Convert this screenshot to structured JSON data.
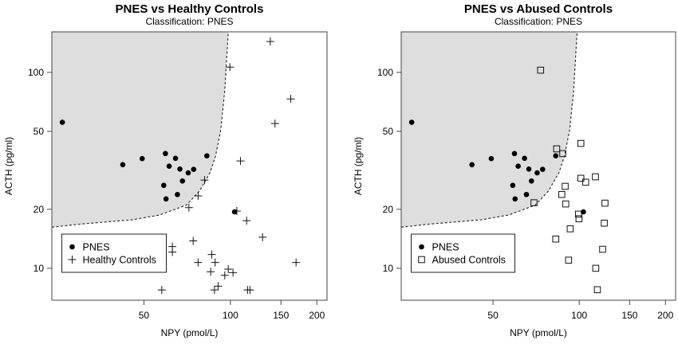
{
  "chart_data": [
    {
      "type": "scatter",
      "title": "PNES vs Healthy Controls",
      "subtitle": "Classification: PNES",
      "xlabel": "NPY (pmol/L)",
      "ylabel": "ACTH (pg/ml)",
      "x_scale": "log",
      "y_scale": "log",
      "xlim": [
        23.9,
        217
      ],
      "ylim": [
        6.87,
        161
      ],
      "xticks": [
        "50",
        "100",
        "150",
        "200"
      ],
      "yticks": [
        "10",
        "20",
        "50",
        "100"
      ],
      "grid": false,
      "legend_position": "bottom-left",
      "region_fill": "#dedede",
      "boundary": [
        [
          23.9,
          16.2
        ],
        [
          29.9,
          16.8
        ],
        [
          45.8,
          17.7
        ],
        [
          56.7,
          18.7
        ],
        [
          70.2,
          21.0
        ],
        [
          78.1,
          24.8
        ],
        [
          85.0,
          30.8
        ],
        [
          88.7,
          37.2
        ],
        [
          92.6,
          50.8
        ],
        [
          95.6,
          81.2
        ],
        [
          98.3,
          161
        ]
      ],
      "series": [
        {
          "name": "PNES",
          "marker": "filled-circle",
          "x": [
            26.0,
            42.2,
            49.3,
            59.4,
            61.2,
            64.4,
            66.7,
            71.3,
            74.5,
            82.8,
            68.1,
            58.6,
            59.7,
            65.4,
            103.4
          ],
          "y": [
            55.6,
            33.8,
            36.3,
            38.5,
            33.2,
            36.4,
            32.1,
            30.7,
            32.0,
            37.5,
            27.9,
            26.5,
            22.6,
            23.8,
            19.4
          ]
        },
        {
          "name": "Healthy Controls",
          "marker": "plus",
          "x": [
            137.7,
            99.6,
            162.2,
            143,
            108.4,
            81.3,
            77.2,
            71.7,
            105.3,
            113.9,
            129.4,
            74.2,
            62.8,
            62.8,
            86.1,
            77.2,
            88.5,
            169.3,
            85.4,
            98.3,
            102.1,
            95.6,
            57.7,
            88.0,
            90.6,
            114.8,
            117
          ],
          "y": [
            143.7,
            106.4,
            73.2,
            54.8,
            35.3,
            28.2,
            23.4,
            20.4,
            19.6,
            17.5,
            14.4,
            13.8,
            12.9,
            12.1,
            11.75,
            10.7,
            10.7,
            10.7,
            9.6,
            9.9,
            9.5,
            9.2,
            7.75,
            7.75,
            8.1,
            7.75,
            7.75
          ]
        }
      ]
    },
    {
      "type": "scatter",
      "title": "PNES vs Abused Controls",
      "subtitle": "Classification: PNES",
      "xlabel": "NPY (pmol/L)",
      "ylabel": "ACTH (pg/ml)",
      "x_scale": "log",
      "y_scale": "log",
      "xlim": [
        23.9,
        217
      ],
      "ylim": [
        6.87,
        161
      ],
      "xticks": [
        "50",
        "100",
        "150",
        "200"
      ],
      "yticks": [
        "10",
        "20",
        "50",
        "100"
      ],
      "grid": false,
      "legend_position": "bottom-left",
      "region_fill": "#dedede",
      "boundary": [
        [
          23.9,
          16.2
        ],
        [
          29.9,
          16.8
        ],
        [
          45.8,
          17.7
        ],
        [
          56.7,
          18.7
        ],
        [
          70.2,
          21.0
        ],
        [
          78.1,
          24.8
        ],
        [
          85.0,
          30.8
        ],
        [
          88.7,
          37.2
        ],
        [
          92.6,
          50.8
        ],
        [
          95.6,
          81.2
        ],
        [
          98.3,
          161
        ]
      ],
      "series": [
        {
          "name": "PNES",
          "marker": "filled-circle",
          "x": [
            26.0,
            42.2,
            49.3,
            59.4,
            61.2,
            64.4,
            66.7,
            71.3,
            74.5,
            82.8,
            68.1,
            58.6,
            59.7,
            65.4,
            103.4
          ],
          "y": [
            55.6,
            33.8,
            36.3,
            38.5,
            33.2,
            36.4,
            32.1,
            30.7,
            32.0,
            37.5,
            27.9,
            26.5,
            22.6,
            23.8,
            19.4
          ]
        },
        {
          "name": "Abused Controls",
          "marker": "open-square",
          "x": [
            73.3,
            101.3,
            83.4,
            87.6,
            113.9,
            101.3,
            105.3,
            89.3,
            86.9,
            69.5,
            89.7,
            123,
            99.4,
            99.8,
            122.3,
            93,
            82.8,
            58.1,
            120.7,
            91.8,
            114.2,
            115.7
          ],
          "y": [
            102.6,
            43.4,
            40.7,
            38.5,
            29.3,
            28.8,
            27.5,
            26.2,
            23.8,
            21.6,
            21.3,
            21.5,
            18.9,
            17.9,
            17.0,
            15.9,
            14.1,
            12.4,
            12.5,
            11.0,
            10.0,
            7.77
          ]
        }
      ]
    }
  ]
}
